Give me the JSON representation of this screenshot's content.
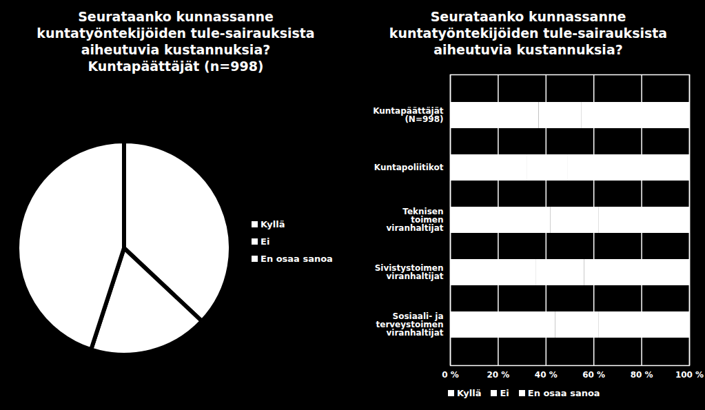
{
  "chart_data": [
    {
      "type": "pie",
      "title": "Seurataanko kunnassanne\nkuntatyöntekijöiden tule-sairauksista\naiheutuvia kustannuksia?\nKuntapäättäjät (n=998)",
      "categories": [
        "Kyllä",
        "Ei",
        "En osaa sanoa"
      ],
      "values": [
        37,
        18,
        45
      ],
      "colors": [
        "#ffffff",
        "#ffffff",
        "#ffffff"
      ],
      "legend": "right"
    },
    {
      "type": "bar",
      "title": "Seurataanko kunnassanne\nkuntatyöntekijöiden tule-sairauksista\naiheutuvia kustannuksia?",
      "orientation": "horizontal",
      "stacked": true,
      "categories": [
        "Kuntapäättäjät\n(N=998)",
        "Kuntapoliitikot",
        "Teknisen\ntoimen\nviranhaltijat",
        "Sivistystoimen\nviranhaltijat",
        "Sosiaali- ja\nterveystoimen\nviranhaltijat"
      ],
      "series": [
        {
          "name": "Kyllä",
          "color": "#ffffff",
          "values": [
            37,
            32,
            42,
            36,
            44
          ]
        },
        {
          "name": "Ei",
          "color": "#ffffff",
          "values": [
            18,
            17,
            20,
            20,
            18
          ]
        },
        {
          "name": "En osaa sanoa",
          "color": "#ffffff",
          "values": [
            45,
            51,
            38,
            44,
            38
          ]
        }
      ],
      "xlim": [
        0,
        100
      ],
      "xticks": [
        {
          "value": 0,
          "label": "0 %"
        },
        {
          "value": 20,
          "label": "20 %"
        },
        {
          "value": 40,
          "label": "40 %"
        },
        {
          "value": 60,
          "label": "60 %"
        },
        {
          "value": 80,
          "label": "80 %"
        },
        {
          "value": 100,
          "label": "100 %"
        }
      ],
      "grid": true,
      "legend": "bottom"
    }
  ]
}
